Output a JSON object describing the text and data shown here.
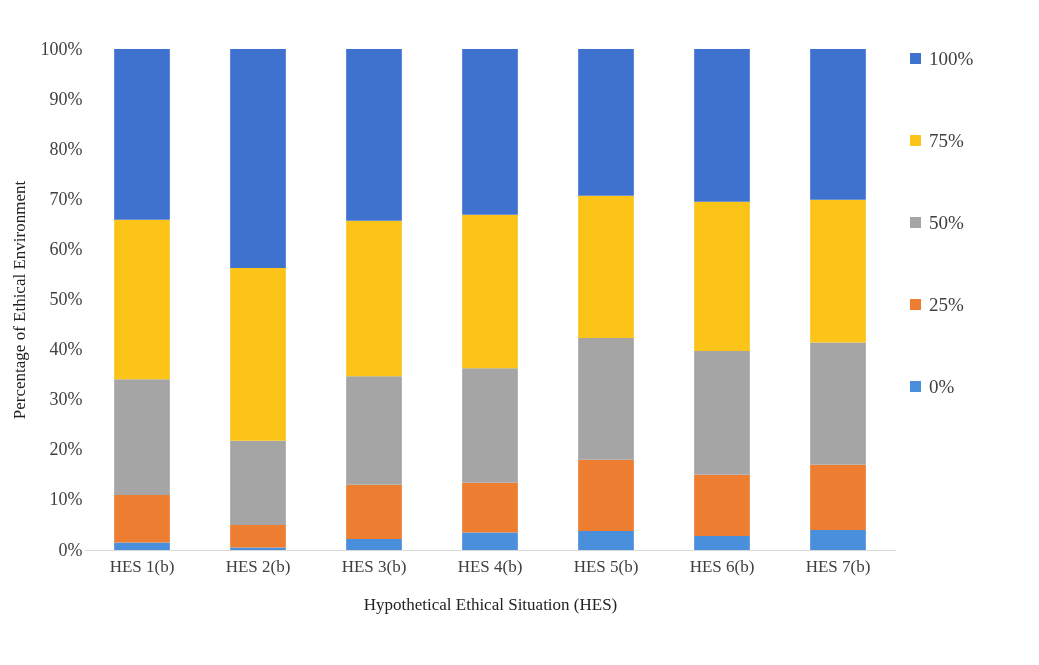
{
  "chart_data": {
    "type": "bar",
    "stacked": true,
    "xlabel": "Hypothetical Ethical Situation (HES)",
    "ylabel": "Percentage of Ethical Environment",
    "categories": [
      "HES 1(b)",
      "HES 2(b)",
      "HES 3(b)",
      "HES 4(b)",
      "HES 5(b)",
      "HES 6(b)",
      "HES 7(b)"
    ],
    "series": [
      {
        "name": "0%",
        "color": "#4a8fdc",
        "values": [
          1.5,
          0.5,
          2.2,
          3.5,
          3.8,
          2.8,
          4
        ]
      },
      {
        "name": "25%",
        "color": "#ed7d31",
        "values": [
          9.5,
          4.5,
          10.8,
          9.9,
          14.2,
          12.2,
          13
        ]
      },
      {
        "name": "50%",
        "color": "#a5a5a5",
        "values": [
          23.1,
          16.8,
          21.7,
          22.9,
          24.3,
          24.7,
          24.4
        ]
      },
      {
        "name": "75%",
        "color": "#fcc419",
        "values": [
          31.8,
          34.5,
          31,
          30.6,
          28.4,
          29.8,
          28.5
        ]
      },
      {
        "name": "100%",
        "color": "#3f72cf",
        "values": [
          34.1,
          43.7,
          34.3,
          33.1,
          29.3,
          30.5,
          30.1
        ]
      }
    ],
    "ylim": [
      0,
      100
    ],
    "yticks": [
      {
        "value": 0,
        "label": "0%"
      },
      {
        "value": 10,
        "label": "10%"
      },
      {
        "value": 20,
        "label": "20%"
      },
      {
        "value": 30,
        "label": "30%"
      },
      {
        "value": 40,
        "label": "40%"
      },
      {
        "value": 50,
        "label": "50%"
      },
      {
        "value": 60,
        "label": "60%"
      },
      {
        "value": 70,
        "label": "70%"
      },
      {
        "value": 80,
        "label": "80%"
      },
      {
        "value": 90,
        "label": "90%"
      },
      {
        "value": 100,
        "label": "100%"
      }
    ],
    "grid": false,
    "legend": "right"
  }
}
